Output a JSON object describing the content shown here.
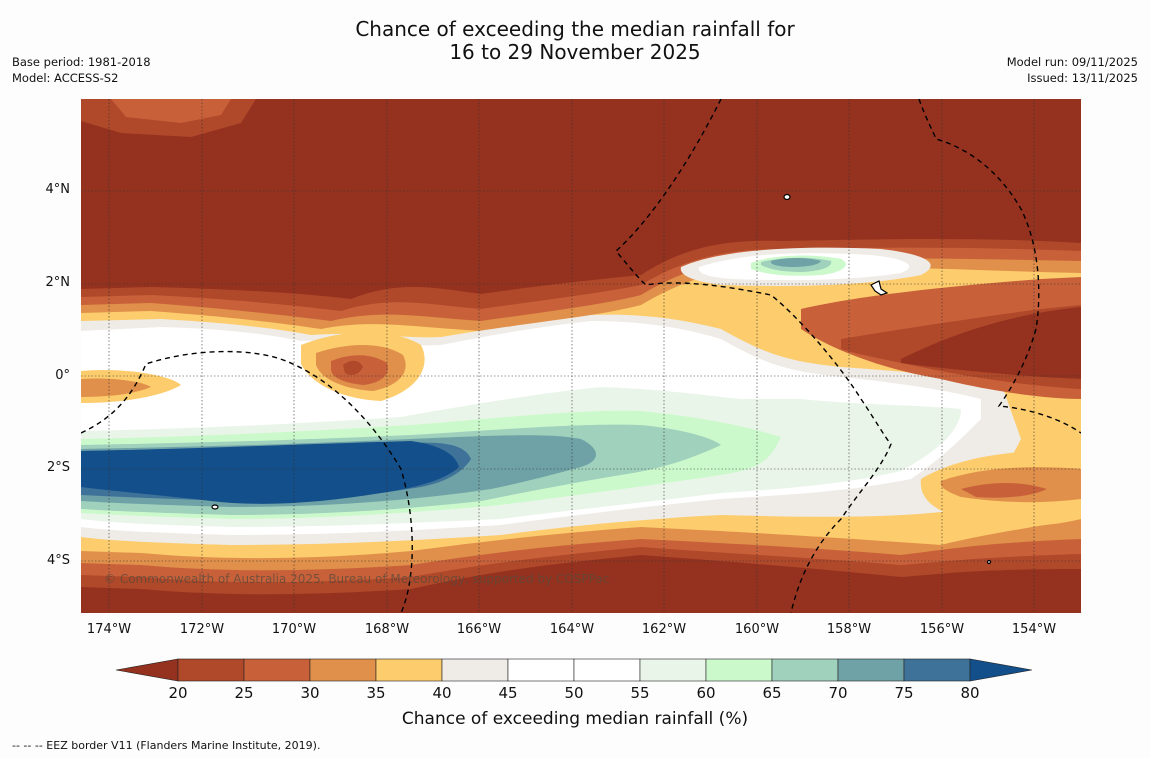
{
  "title": {
    "line1": "Chance of exceeding the median rainfall for",
    "line2": "16 to 29 November 2025"
  },
  "meta": {
    "base_period": "Base period: 1981-2018",
    "model": "Model: ACCESS-S2",
    "model_run": "Model run: 09/11/2025",
    "issued": "Issued: 13/11/2025"
  },
  "map": {
    "lat_labels": [
      "4°N",
      "2°N",
      "0°",
      "2°S",
      "4°S"
    ],
    "lon_labels": [
      "174°W",
      "172°W",
      "170°W",
      "168°W",
      "166°W",
      "164°W",
      "162°W",
      "160°W",
      "158°W",
      "156°W",
      "154°W"
    ],
    "credit": "© Commonwealth of Australia 2025, Bureau of Meteorology, supported by COSPPac"
  },
  "colorbar": {
    "title": "Chance of exceeding median rainfall (%)",
    "labels": [
      "20",
      "25",
      "30",
      "35",
      "40",
      "45",
      "50",
      "55",
      "60",
      "65",
      "70",
      "75",
      "80"
    ],
    "colors": [
      "#b0482a",
      "#c8613a",
      "#e0904a",
      "#fdcc6c",
      "#efebe6",
      "#ffffff",
      "#ffffff",
      "#eaf5ea",
      "#ccf9cc",
      "#9fd1bc",
      "#6fa2a6",
      "#3e7299"
    ],
    "under_color": "#95321f",
    "over_color": "#134f8a"
  },
  "footer": {
    "eez": "--  --  -- EEZ border V11 (Flanders Marine Institute, 2019)."
  }
}
